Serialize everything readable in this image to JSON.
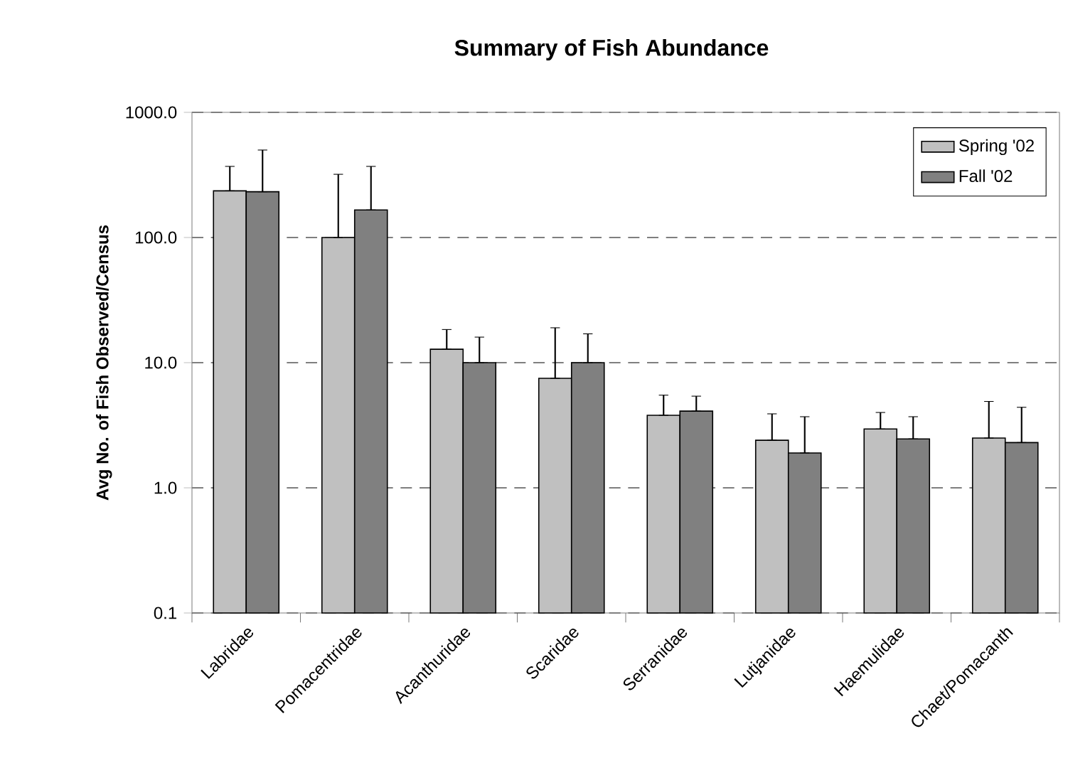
{
  "chart_data": {
    "type": "bar",
    "title": "Summary of Fish Abundance",
    "ylabel": "Avg No. of Fish Observed/Census",
    "categories": [
      "Labridae",
      "Pomacentridae",
      "Acanthuridae",
      "Scaridae",
      "Serranidae",
      "Lutjanidae",
      "Haemulidae",
      "Chaet/Pomacanth"
    ],
    "series": [
      {
        "name": "Spring '02",
        "color": "#c0c0c0",
        "values": [
          236,
          100,
          12.8,
          7.5,
          3.8,
          2.4,
          2.95,
          2.5
        ],
        "errors": [
          [
            236,
            370
          ],
          [
            100,
            320
          ],
          [
            12.8,
            18.4
          ],
          [
            7.5,
            19
          ],
          [
            3.8,
            5.5
          ],
          [
            2.4,
            3.9
          ],
          [
            2.95,
            4.0
          ],
          [
            2.5,
            4.9
          ]
        ]
      },
      {
        "name": "Fall '02",
        "color": "#808080",
        "values": [
          232,
          166,
          10,
          10,
          4.1,
          1.9,
          2.46,
          2.3
        ],
        "errors": [
          [
            232,
            500
          ],
          [
            166,
            370
          ],
          [
            10,
            16
          ],
          [
            10,
            17
          ],
          [
            4.1,
            5.4
          ],
          [
            1.9,
            3.7
          ],
          [
            2.46,
            3.7
          ],
          [
            2.3,
            4.4
          ]
        ]
      }
    ],
    "log": "y",
    "ylim": [
      0.1,
      1000
    ],
    "yticks": [
      0.1,
      {
        "value": 1,
        "label": "1.0"
      },
      {
        "value": 10,
        "label": "10.0"
      },
      {
        "value": 100,
        "label": "100.0"
      },
      {
        "value": 1000,
        "label": "1000.0"
      }
    ],
    "grid": "y",
    "legend": "top right"
  }
}
